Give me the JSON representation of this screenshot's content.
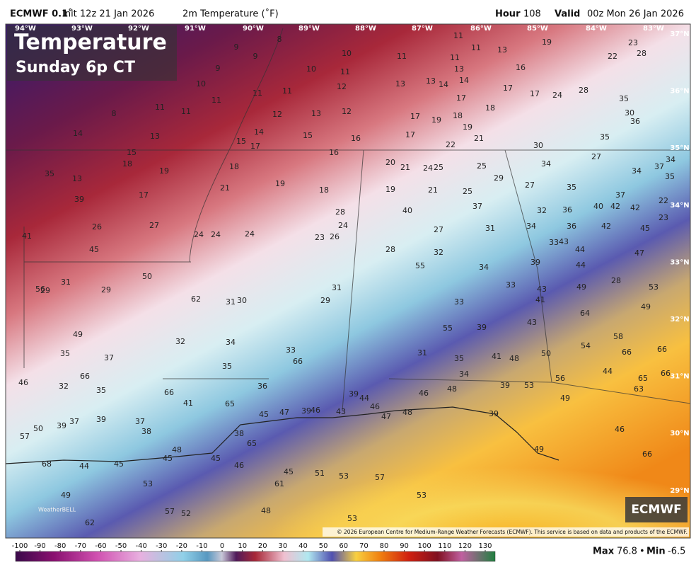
{
  "header": {
    "model": "ECMWF 0.1˚",
    "init": "Init 12z 21 Jan 2026",
    "field": "2m Temperature (˚F)",
    "hour_label": "Hour",
    "hour": "108",
    "valid_label": "Valid",
    "valid": "00z Mon 26 Jan 2026"
  },
  "overlay": {
    "title": "Temperature",
    "subtitle": "Sunday 6p CT"
  },
  "lon_labels": [
    "94°W",
    "93°W",
    "92°W",
    "91°W",
    "90°W",
    "89°W",
    "88°W",
    "87°W",
    "86°W",
    "85°W",
    "84°W",
    "83°W"
  ],
  "lat_labels": [
    "37°N",
    "36°N",
    "35°N",
    "34°N",
    "33°N",
    "32°N",
    "31°N",
    "30°N",
    "29°N"
  ],
  "stations": [
    8,
    9,
    9,
    10,
    11,
    11,
    13,
    19,
    23,
    28,
    22,
    11,
    11,
    9,
    10,
    11,
    13,
    16,
    10,
    11,
    11,
    12,
    13,
    13,
    14,
    14,
    17,
    17,
    24,
    28,
    17,
    8,
    11,
    11,
    11,
    12,
    13,
    12,
    17,
    19,
    18,
    18,
    19,
    35,
    30,
    36,
    14,
    13,
    14,
    15,
    17,
    15,
    16,
    17,
    22,
    21,
    35,
    30,
    15,
    16,
    18,
    19,
    18,
    20,
    21,
    24,
    25,
    25,
    27,
    34,
    34,
    34,
    37,
    35,
    35,
    13,
    17,
    21,
    19,
    18,
    19,
    21,
    25,
    29,
    27,
    35,
    37,
    39,
    22,
    37,
    32,
    36,
    40,
    42,
    42,
    40,
    28,
    24,
    26,
    27,
    23,
    41,
    24,
    24,
    24,
    23,
    26,
    27,
    31,
    34,
    36,
    42,
    45,
    45,
    28,
    32,
    33,
    43,
    44,
    47,
    55,
    34,
    39,
    44,
    50,
    31,
    28,
    56,
    29,
    29,
    31,
    33,
    43,
    49,
    53,
    62,
    31,
    30,
    29,
    33,
    41,
    49,
    64,
    55,
    39,
    43,
    49,
    32,
    34,
    33,
    35,
    31,
    41,
    48,
    50,
    54,
    58,
    66,
    66,
    66,
    37,
    35,
    35,
    44,
    65,
    66,
    66,
    34,
    46,
    32,
    35,
    36,
    39,
    53,
    56,
    63,
    66,
    39,
    44,
    46,
    48,
    49,
    65,
    41,
    39,
    46,
    47,
    45,
    43,
    46,
    47,
    48,
    50,
    37,
    39,
    37,
    38,
    39,
    39,
    57,
    38,
    46,
    65,
    48,
    45,
    45,
    46,
    49,
    66,
    68,
    44,
    45,
    45,
    51,
    53,
    57,
    61,
    53,
    49,
    48,
    57,
    52,
    53,
    62,
    53
  ],
  "colorbar": {
    "ticks": [
      -100,
      -90,
      -80,
      -70,
      -60,
      -50,
      -40,
      -30,
      -20,
      -10,
      0,
      10,
      20,
      30,
      40,
      50,
      60,
      70,
      80,
      90,
      100,
      110,
      120,
      130
    ]
  },
  "footer": {
    "max_label": "Max",
    "max": "76.8",
    "min_label": "Min",
    "min": "-6.5",
    "copyright": "© 2026 European Centre for Medium-Range Weather Forecasts (ECMWF). This service is based on data and products of the ECMWF.",
    "logo": "ECMWF",
    "brand": "WeatherBELL"
  }
}
